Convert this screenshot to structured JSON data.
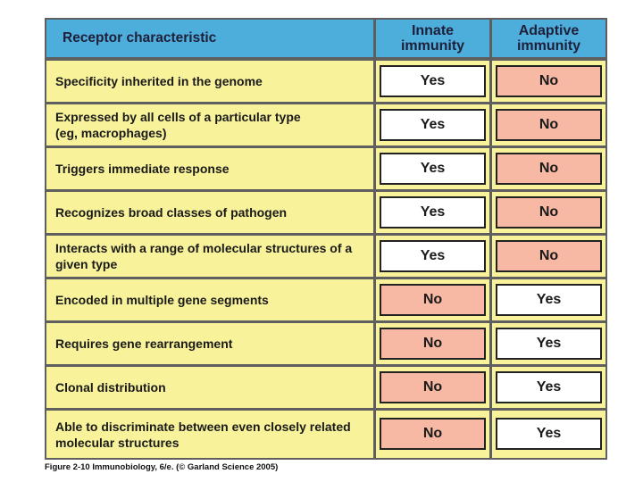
{
  "header": {
    "characteristic": "Receptor characteristic",
    "innate_line1": "Innate",
    "innate_line2": "immunity",
    "adaptive_line1": "Adaptive",
    "adaptive_line2": "immunity"
  },
  "rows": [
    {
      "label_line1": "Specificity inherited in the genome",
      "label_line2": "",
      "innate": "Yes",
      "adaptive": "No"
    },
    {
      "label_line1": "Expressed by all cells of a particular type",
      "label_line2": "(eg, macrophages)",
      "innate": "Yes",
      "adaptive": "No"
    },
    {
      "label_line1": "Triggers immediate response",
      "label_line2": "",
      "innate": "Yes",
      "adaptive": "No"
    },
    {
      "label_line1": "Recognizes broad classes of pathogen",
      "label_line2": "",
      "innate": "Yes",
      "adaptive": "No"
    },
    {
      "label_line1": "Interacts with a range of molecular structures of a",
      "label_line2": "given type",
      "innate": "Yes",
      "adaptive": "No"
    },
    {
      "label_line1": "Encoded in multiple gene segments",
      "label_line2": "",
      "innate": "No",
      "adaptive": "Yes"
    },
    {
      "label_line1": "Requires gene rearrangement",
      "label_line2": "",
      "innate": "No",
      "adaptive": "Yes"
    },
    {
      "label_line1": "Clonal distribution",
      "label_line2": "",
      "innate": "No",
      "adaptive": "Yes"
    },
    {
      "label_line1": "Able to discriminate between even closely related",
      "label_line2": "molecular structures",
      "innate": "No",
      "adaptive": "Yes"
    }
  ],
  "caption": "Figure 2-10  Immunobiology, 6/e. (© Garland Science 2005)",
  "colors": {
    "header": "#4daedb",
    "row": "#f8f29a",
    "yes_box": "#ffffff",
    "no_box": "#f7b9a4"
  }
}
